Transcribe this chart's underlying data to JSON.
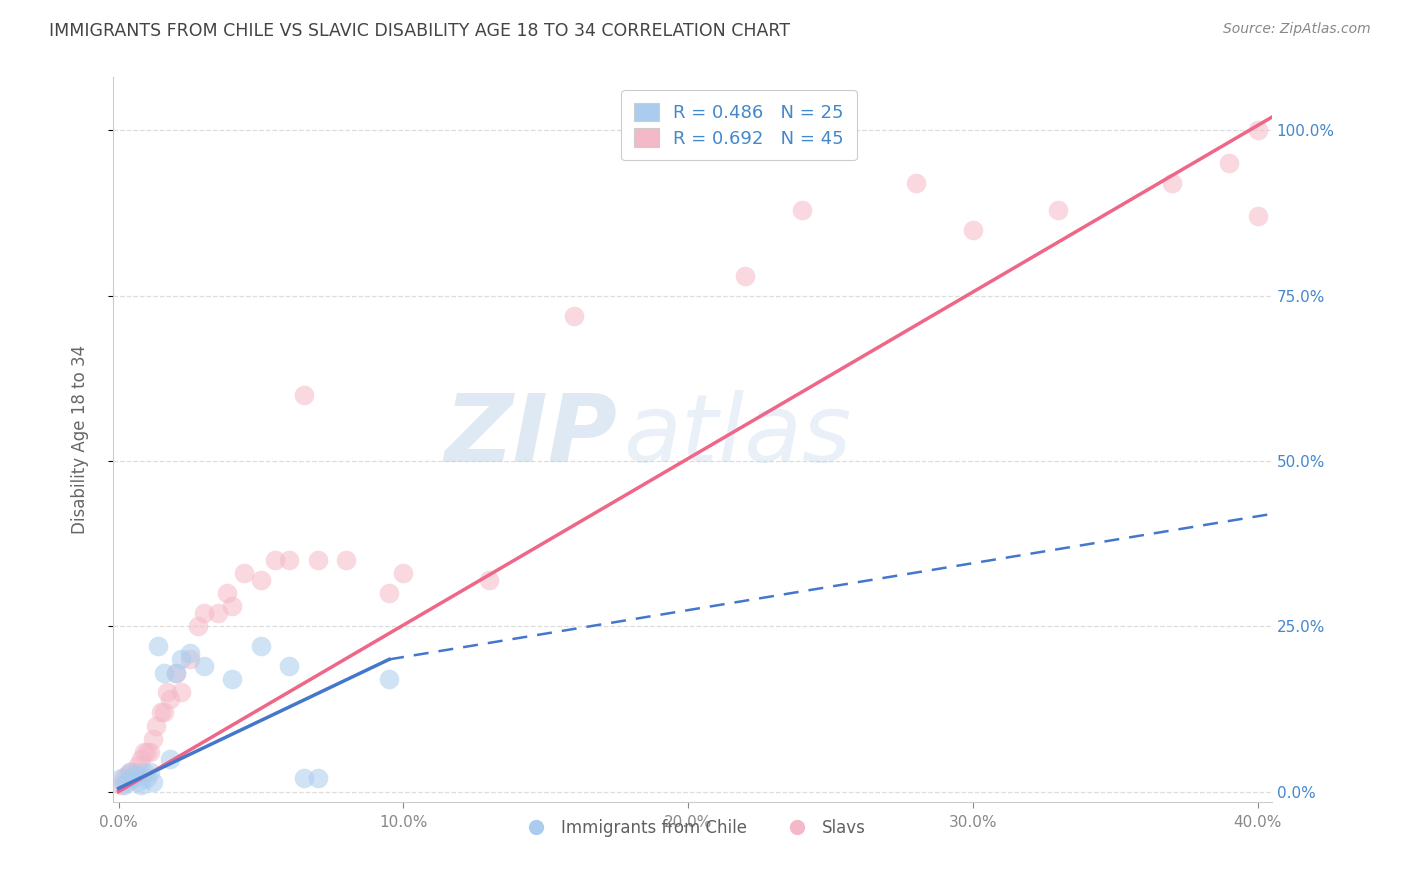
{
  "title": "IMMIGRANTS FROM CHILE VS SLAVIC DISABILITY AGE 18 TO 34 CORRELATION CHART",
  "source": "Source: ZipAtlas.com",
  "ylabel": "Disability Age 18 to 34",
  "xlim": [
    -0.002,
    0.405
  ],
  "ylim": [
    -0.015,
    1.08
  ],
  "legend_label_blue": "R = 0.486   N = 25",
  "legend_label_pink": "R = 0.692   N = 45",
  "legend_bottom_blue": "Immigrants from Chile",
  "legend_bottom_pink": "Slavs",
  "blue_scatter_x": [
    0.001,
    0.002,
    0.003,
    0.004,
    0.005,
    0.006,
    0.007,
    0.008,
    0.009,
    0.01,
    0.011,
    0.012,
    0.014,
    0.016,
    0.018,
    0.02,
    0.022,
    0.025,
    0.03,
    0.04,
    0.05,
    0.06,
    0.065,
    0.07,
    0.095
  ],
  "blue_scatter_y": [
    0.02,
    0.01,
    0.015,
    0.03,
    0.02,
    0.025,
    0.015,
    0.01,
    0.03,
    0.02,
    0.03,
    0.015,
    0.22,
    0.18,
    0.05,
    0.18,
    0.2,
    0.21,
    0.19,
    0.17,
    0.22,
    0.19,
    0.02,
    0.02,
    0.17
  ],
  "pink_scatter_x": [
    0.001,
    0.002,
    0.003,
    0.004,
    0.005,
    0.006,
    0.007,
    0.008,
    0.009,
    0.01,
    0.011,
    0.012,
    0.013,
    0.015,
    0.016,
    0.017,
    0.018,
    0.02,
    0.022,
    0.025,
    0.028,
    0.03,
    0.035,
    0.038,
    0.04,
    0.044,
    0.05,
    0.055,
    0.06,
    0.065,
    0.07,
    0.08,
    0.095,
    0.1,
    0.13,
    0.16,
    0.22,
    0.24,
    0.28,
    0.3,
    0.33,
    0.37,
    0.39,
    0.4,
    0.4
  ],
  "pink_scatter_y": [
    0.01,
    0.02,
    0.025,
    0.03,
    0.02,
    0.03,
    0.04,
    0.05,
    0.06,
    0.06,
    0.06,
    0.08,
    0.1,
    0.12,
    0.12,
    0.15,
    0.14,
    0.18,
    0.15,
    0.2,
    0.25,
    0.27,
    0.27,
    0.3,
    0.28,
    0.33,
    0.32,
    0.35,
    0.35,
    0.6,
    0.35,
    0.35,
    0.3,
    0.33,
    0.32,
    0.72,
    0.78,
    0.88,
    0.92,
    0.85,
    0.88,
    0.92,
    0.95,
    1.0,
    0.87
  ],
  "blue_solid_line_x": [
    0.0,
    0.095
  ],
  "blue_solid_line_y": [
    0.005,
    0.2
  ],
  "blue_dashed_line_x": [
    0.095,
    0.405
  ],
  "blue_dashed_line_y": [
    0.2,
    0.42
  ],
  "pink_line_x": [
    0.0,
    0.405
  ],
  "pink_line_y": [
    0.0,
    1.02
  ],
  "blue_color": "#aaccee",
  "pink_color": "#f5b8c8",
  "blue_line_color": "#4477cc",
  "pink_line_color": "#ee6688",
  "watermark_zip": "ZIP",
  "watermark_atlas": "atlas",
  "background_color": "#ffffff",
  "grid_color": "#dddddd",
  "title_color": "#444444",
  "right_axis_color": "#4488cc",
  "source_color": "#888888"
}
